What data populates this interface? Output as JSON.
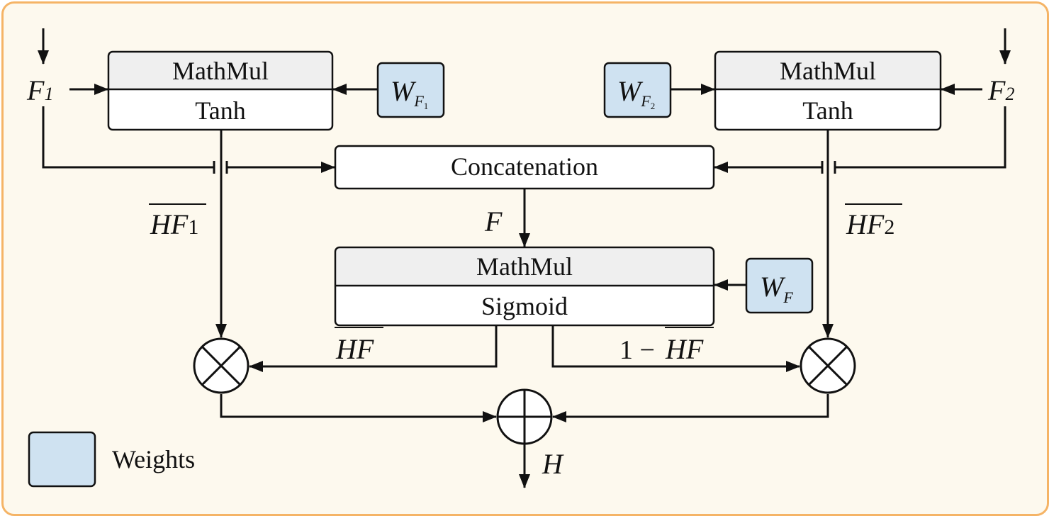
{
  "inputs": {
    "left": {
      "base": "F",
      "sub": "1"
    },
    "right": {
      "base": "F",
      "sub": "2"
    }
  },
  "blocks": {
    "left_top": "MathMul",
    "left_bottom": "Tanh",
    "right_top": "MathMul",
    "right_bottom": "Tanh",
    "concat": "Concatenation",
    "mid_top": "MathMul",
    "mid_bottom": "Sigmoid"
  },
  "weights": {
    "wf1": {
      "base": "W",
      "sub_base": "F",
      "sub_sub": "1"
    },
    "wf2": {
      "base": "W",
      "sub_base": "F",
      "sub_sub": "2"
    },
    "wf": {
      "base": "W",
      "sub": "F"
    }
  },
  "signals": {
    "hf1": {
      "base": "HF",
      "sub": "1"
    },
    "hf2": {
      "base": "HF",
      "sub": "2"
    },
    "f": "F",
    "hf": "HF",
    "one_minus_prefix": "1 −",
    "one_minus_hf": "HF",
    "h": "H"
  },
  "legend": {
    "label": "Weights",
    "color": "#cfe2f1"
  },
  "colors": {
    "frame_border": "#f5b466",
    "background": "#fdf9ee",
    "header_fill": "#efefef",
    "weight_fill": "#cfe2f1"
  }
}
